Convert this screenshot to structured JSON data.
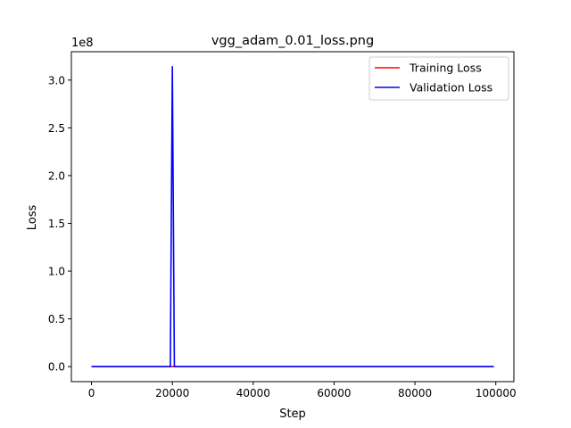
{
  "chart_data": {
    "type": "line",
    "title": "vgg_adam_0.01_loss.png",
    "xlabel": "Step",
    "ylabel": "Loss",
    "y_offset_label": "1e8",
    "y_scale": 100000000,
    "xlim": [
      -4975,
      104475
    ],
    "ylim": [
      -15700000,
      329700000
    ],
    "xticks": [
      0,
      20000,
      40000,
      60000,
      80000,
      100000
    ],
    "xtick_labels": [
      "0",
      "20000",
      "40000",
      "60000",
      "80000",
      "100000"
    ],
    "yticks": [
      0,
      50000000,
      100000000,
      150000000,
      200000000,
      250000000,
      300000000
    ],
    "ytick_labels": [
      "0.0",
      "0.5",
      "1.0",
      "1.5",
      "2.0",
      "2.5",
      "3.0"
    ],
    "grid": false,
    "legend_position": "top-right",
    "series": [
      {
        "name": "Training Loss",
        "color": "#ff0000",
        "x": [
          0,
          19500,
          20000,
          20500,
          99500
        ],
        "y": [
          0,
          0,
          0,
          0,
          0
        ]
      },
      {
        "name": "Validation Loss",
        "color": "#0000ff",
        "x": [
          0,
          19500,
          20000,
          20500,
          99500
        ],
        "y": [
          0,
          0,
          314000000,
          0,
          0
        ]
      }
    ]
  }
}
